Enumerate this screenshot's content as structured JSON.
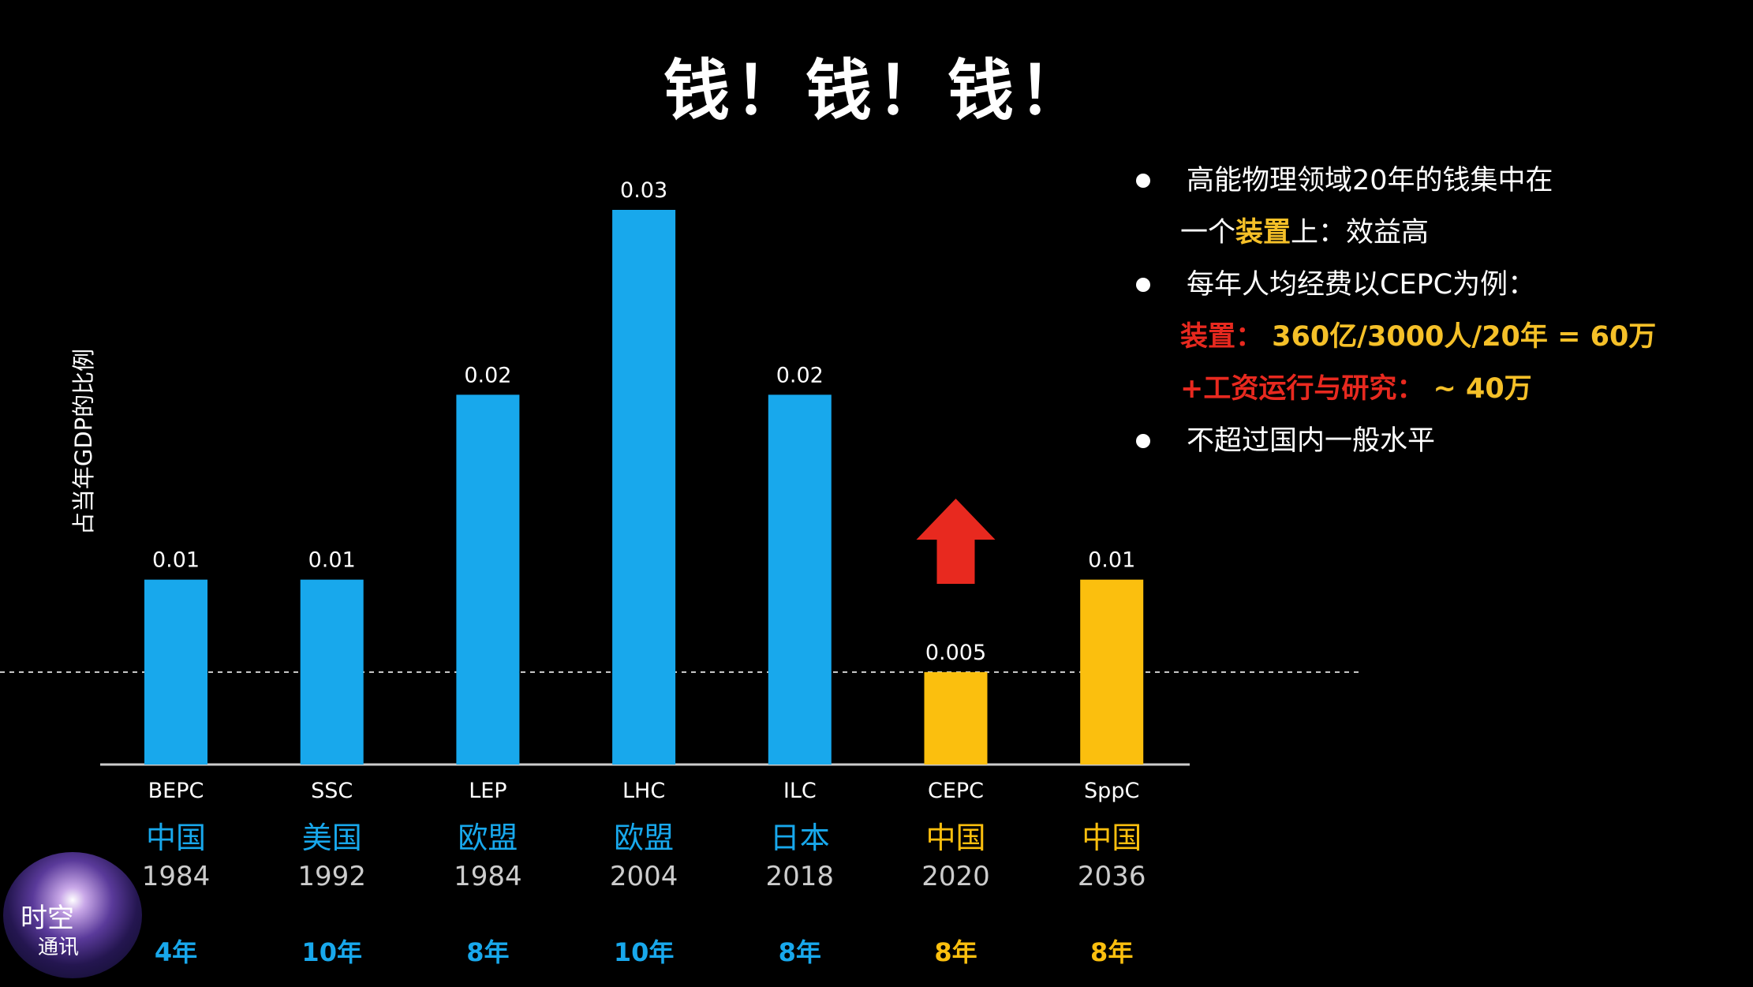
{
  "title": "钱！钱！钱！",
  "chart_data": {
    "type": "bar",
    "ylabel": "占当年GDP的比例",
    "categories": [
      "BEPC",
      "SSC",
      "LEP",
      "LHC",
      "ILC",
      "CEPC",
      "SppC"
    ],
    "countries": [
      "中国",
      "美国",
      "欧盟",
      "欧盟",
      "日本",
      "中国",
      "中国"
    ],
    "years": [
      "1984",
      "1992",
      "1984",
      "2004",
      "2018",
      "2020",
      "2036"
    ],
    "durations": [
      "4年",
      "10年",
      "8年",
      "10年",
      "8年",
      "8年",
      "8年"
    ],
    "values": [
      0.01,
      0.01,
      0.02,
      0.03,
      0.02,
      0.005,
      0.01
    ],
    "value_labels": [
      "0.01",
      "0.01",
      "0.02",
      "0.03",
      "0.02",
      "0.005",
      "0.01"
    ],
    "bar_colors": [
      "#18a8ec",
      "#18a8ec",
      "#18a8ec",
      "#18a8ec",
      "#18a8ec",
      "#fbbf0e",
      "#fbbf0e"
    ],
    "reference_line": 0.005,
    "ylim": [
      0,
      0.03
    ],
    "arrow_over": "CEPC",
    "arrow_color": "#e8291f"
  },
  "bullets": [
    {
      "text_a": "高能物理领域20年的钱集中在",
      "cont_prefix": "一个",
      "cont_hl": "装置",
      "cont_suffix": "上：效益高"
    },
    {
      "text": "每年人均经费以CEPC为例：",
      "red_label": "装置：",
      "formula": "360亿/3000人/20年 = 60万",
      "red_label2": "+工资运行与研究：",
      "extra": "~ 40万"
    },
    {
      "text": "不超过国内一般水平"
    }
  ],
  "logo": {
    "line1": "时空",
    "line2": "通讯"
  },
  "colors": {
    "blue": "#18a8ec",
    "gold": "#fbbf0e",
    "red": "#e8291f",
    "bg": "#000000"
  }
}
